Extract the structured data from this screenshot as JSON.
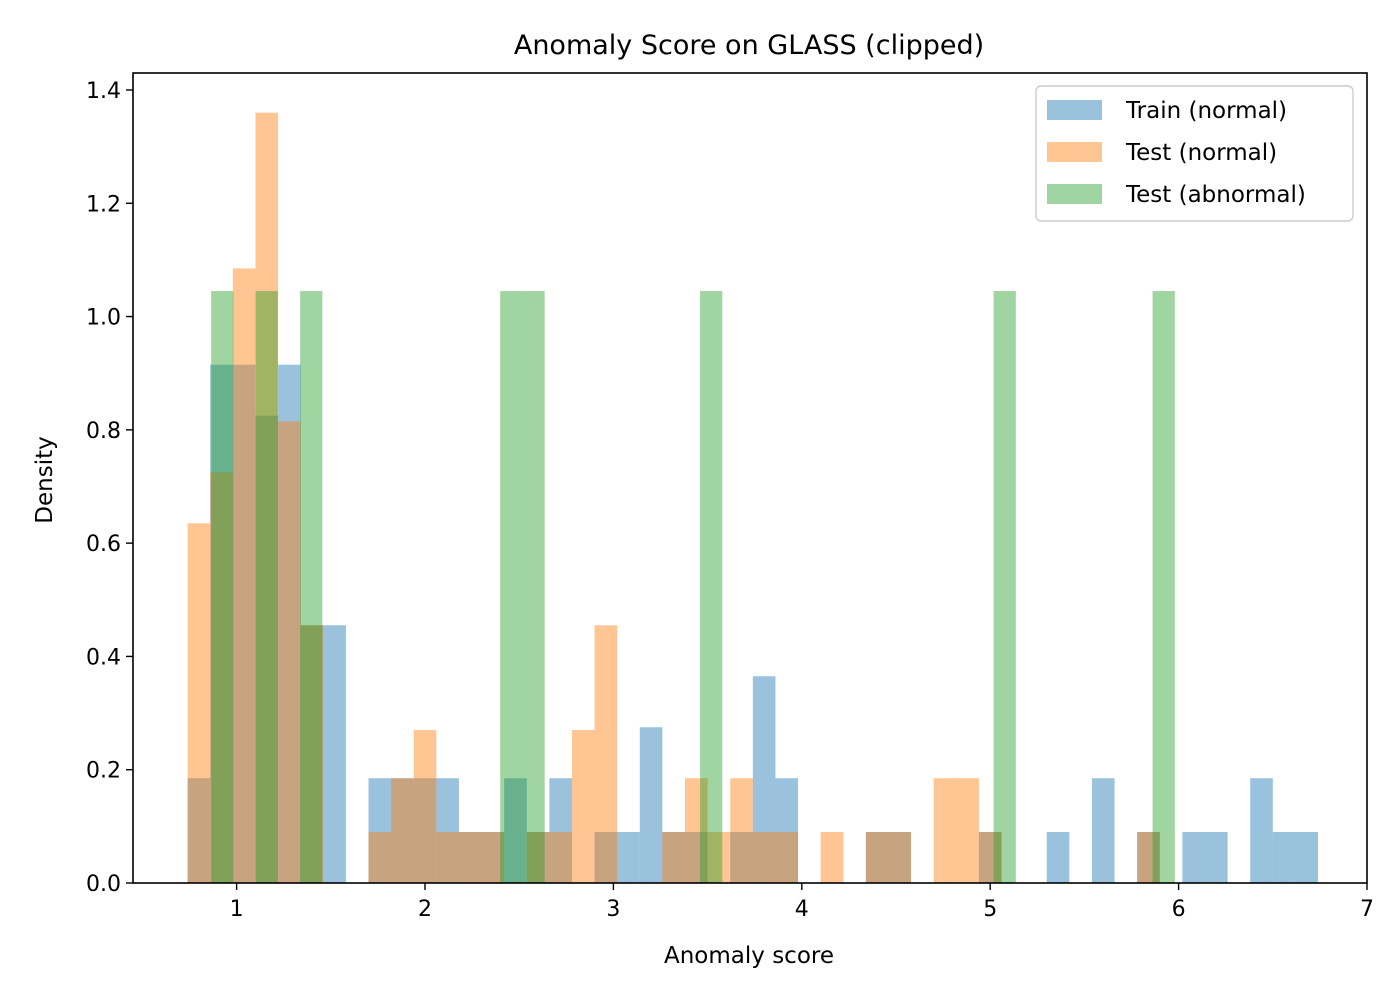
{
  "chart_data": {
    "type": "bar",
    "title": "Anomaly Score on GLASS (clipped)",
    "xlabel": "Anomaly score",
    "ylabel": "Density",
    "xlim": [
      0.45,
      7.0
    ],
    "ylim": [
      0,
      1.43
    ],
    "xticks": [
      1,
      2,
      3,
      4,
      5,
      6,
      7
    ],
    "yticks": [
      0.0,
      0.2,
      0.4,
      0.6,
      0.8,
      1.0,
      1.2,
      1.4
    ],
    "xtick_labels": [
      "1",
      "2",
      "3",
      "4",
      "5",
      "6",
      "7"
    ],
    "ytick_labels": [
      "0.0",
      "0.2",
      "0.4",
      "0.6",
      "0.8",
      "1.0",
      "1.2",
      "1.4"
    ],
    "legend_position": "top-right",
    "opacity": 0.45,
    "series": [
      {
        "name": "Train (normal)",
        "color": "#1f77b4",
        "bin_width": 0.12,
        "bins": [
          [
            0.74,
            0.185
          ],
          [
            0.86,
            0.915
          ],
          [
            0.98,
            0.915
          ],
          [
            1.1,
            0.825
          ],
          [
            1.22,
            0.915
          ],
          [
            1.34,
            0.455
          ],
          [
            1.46,
            0.455
          ],
          [
            1.7,
            0.185
          ],
          [
            1.82,
            0.185
          ],
          [
            1.94,
            0.185
          ],
          [
            2.06,
            0.185
          ],
          [
            2.18,
            0.09
          ],
          [
            2.3,
            0.09
          ],
          [
            2.42,
            0.185
          ],
          [
            2.54,
            0.09
          ],
          [
            2.66,
            0.185
          ],
          [
            2.9,
            0.09
          ],
          [
            3.02,
            0.09
          ],
          [
            3.14,
            0.275
          ],
          [
            3.26,
            0.09
          ],
          [
            3.38,
            0.09
          ],
          [
            3.62,
            0.09
          ],
          [
            3.74,
            0.365
          ],
          [
            3.86,
            0.185
          ],
          [
            4.34,
            0.09
          ],
          [
            4.46,
            0.09
          ],
          [
            4.94,
            0.09
          ],
          [
            5.3,
            0.09
          ],
          [
            5.54,
            0.185
          ],
          [
            5.78,
            0.09
          ],
          [
            6.02,
            0.09
          ],
          [
            6.14,
            0.09
          ],
          [
            6.38,
            0.185
          ],
          [
            6.5,
            0.09
          ],
          [
            6.62,
            0.09
          ]
        ]
      },
      {
        "name": "Test (normal)",
        "color": "#ff7f0e",
        "bin_width": 0.12,
        "bins": [
          [
            0.74,
            0.635
          ],
          [
            0.86,
            0.725
          ],
          [
            0.98,
            1.085
          ],
          [
            1.1,
            1.36
          ],
          [
            1.22,
            0.815
          ],
          [
            1.34,
            0.455
          ],
          [
            1.7,
            0.09
          ],
          [
            1.82,
            0.185
          ],
          [
            1.94,
            0.27
          ],
          [
            2.06,
            0.09
          ],
          [
            2.18,
            0.09
          ],
          [
            2.3,
            0.09
          ],
          [
            2.54,
            0.09
          ],
          [
            2.66,
            0.09
          ],
          [
            2.78,
            0.27
          ],
          [
            2.9,
            0.455
          ],
          [
            3.26,
            0.09
          ],
          [
            3.38,
            0.185
          ],
          [
            3.5,
            0.09
          ],
          [
            3.62,
            0.185
          ],
          [
            3.74,
            0.09
          ],
          [
            3.86,
            0.09
          ],
          [
            4.1,
            0.09
          ],
          [
            4.34,
            0.09
          ],
          [
            4.46,
            0.09
          ],
          [
            4.7,
            0.185
          ],
          [
            4.82,
            0.185
          ],
          [
            4.94,
            0.09
          ],
          [
            5.78,
            0.09
          ]
        ]
      },
      {
        "name": "Test (abnormal)",
        "color": "#2ca02c",
        "bin_width": 0.118,
        "bins": [
          [
            0.865,
            1.045
          ],
          [
            1.101,
            1.045
          ],
          [
            1.337,
            1.045
          ],
          [
            2.399,
            1.045
          ],
          [
            2.517,
            1.045
          ],
          [
            3.46,
            1.045
          ],
          [
            5.018,
            1.045
          ],
          [
            5.862,
            1.045
          ]
        ]
      }
    ]
  }
}
